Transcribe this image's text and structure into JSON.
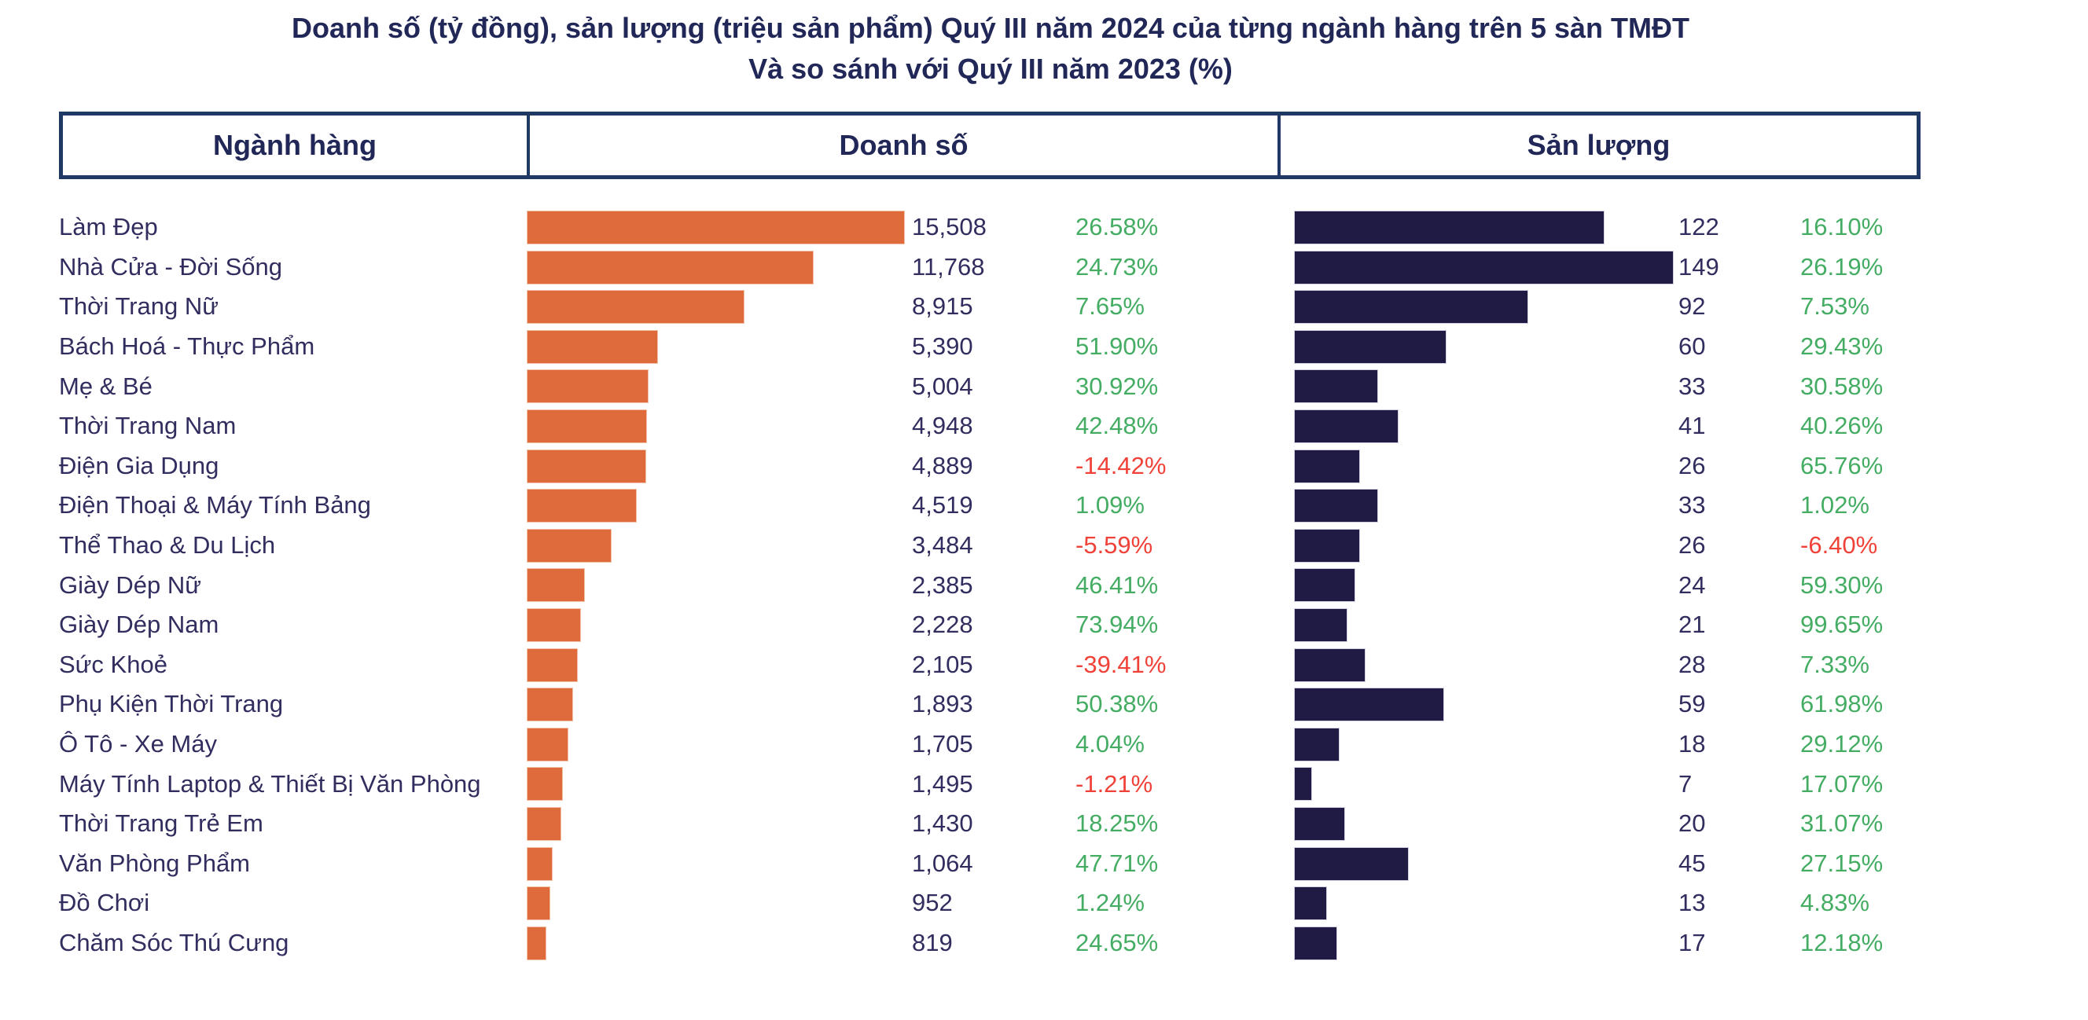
{
  "title": {
    "line1": "Doanh số (tỷ đồng), sản lượng (triệu sản phẩm) Quý III năm 2024 của từng ngành hàng trên 5 sàn TMĐT",
    "line2": "Và so sánh với Quý III năm 2023 (%)"
  },
  "table_header": {
    "category": "Ngành hàng",
    "revenue": "Doanh số",
    "volume": "Sản lượng"
  },
  "colors": {
    "revenue_bar": "#DF6A3B",
    "volume_bar": "#201B44",
    "positive": "#44AD63",
    "negative": "#F04238",
    "text": "#312D5F",
    "title": "#212858",
    "border": "#1F3864"
  },
  "chart_data": {
    "type": "bar",
    "orientation": "horizontal",
    "title": "Doanh số (tỷ đồng), sản lượng (triệu sản phẩm) Quý III năm 2024 của từng ngành hàng trên 5 sàn TMĐT Và so sánh với Quý III năm 2023 (%)",
    "categories": [
      "Làm Đẹp",
      "Nhà Cửa - Đời Sống",
      "Thời Trang Nữ",
      "Bách Hoá - Thực Phẩm",
      "Mẹ & Bé",
      "Thời Trang Nam",
      "Điện Gia Dụng",
      "Điện Thoại & Máy Tính Bảng",
      "Thể Thao & Du Lịch",
      "Giày Dép Nữ",
      "Giày Dép Nam",
      "Sức Khoẻ",
      "Phụ Kiện Thời Trang",
      "Ô Tô - Xe Máy",
      "Máy Tính Laptop & Thiết Bị Văn Phòng",
      "Thời Trang Trẻ Em",
      "Văn Phòng Phẩm",
      "Đồ Chơi",
      "Chăm Sóc Thú Cưng"
    ],
    "series": [
      {
        "name": "Doanh số",
        "unit": "tỷ đồng",
        "values": [
          15508,
          11768,
          8915,
          5390,
          5004,
          4948,
          4889,
          4519,
          3484,
          2385,
          2228,
          2105,
          1893,
          1705,
          1495,
          1430,
          1064,
          952,
          819
        ],
        "labels": [
          "15,508",
          "11,768",
          "8,915",
          "5,390",
          "5,004",
          "4,948",
          "4,889",
          "4,519",
          "3,484",
          "2,385",
          "2,228",
          "2,105",
          "1,893",
          "1,705",
          "1,495",
          "1,430",
          "1,064",
          "952",
          "819"
        ],
        "change_pct": [
          26.58,
          24.73,
          7.65,
          51.9,
          30.92,
          42.48,
          -14.42,
          1.09,
          -5.59,
          46.41,
          73.94,
          -39.41,
          50.38,
          4.04,
          -1.21,
          18.25,
          47.71,
          1.24,
          24.65
        ],
        "change_labels": [
          "26.58%",
          "24.73%",
          "7.65%",
          "51.90%",
          "30.92%",
          "42.48%",
          "-14.42%",
          "1.09%",
          "-5.59%",
          "46.41%",
          "73.94%",
          "-39.41%",
          "50.38%",
          "4.04%",
          "-1.21%",
          "18.25%",
          "47.71%",
          "1.24%",
          "24.65%"
        ]
      },
      {
        "name": "Sản lượng",
        "unit": "triệu sản phẩm",
        "values": [
          122,
          149,
          92,
          60,
          33,
          41,
          26,
          33,
          26,
          24,
          21,
          28,
          59,
          18,
          7,
          20,
          45,
          13,
          17
        ],
        "labels": [
          "122",
          "149",
          "92",
          "60",
          "33",
          "41",
          "26",
          "33",
          "26",
          "24",
          "21",
          "28",
          "59",
          "18",
          "7",
          "20",
          "45",
          "13",
          "17"
        ],
        "change_pct": [
          16.1,
          26.19,
          7.53,
          29.43,
          30.58,
          40.26,
          65.76,
          1.02,
          -6.4,
          59.3,
          99.65,
          7.33,
          61.98,
          29.12,
          17.07,
          31.07,
          27.15,
          4.83,
          12.18
        ],
        "change_labels": [
          "16.10%",
          "26.19%",
          "7.53%",
          "29.43%",
          "30.58%",
          "40.26%",
          "65.76%",
          "1.02%",
          "-6.40%",
          "59.30%",
          "99.65%",
          "7.33%",
          "61.98%",
          "29.12%",
          "17.07%",
          "31.07%",
          "27.15%",
          "4.83%",
          "12.18%"
        ]
      }
    ],
    "legend": false,
    "grid": false
  }
}
